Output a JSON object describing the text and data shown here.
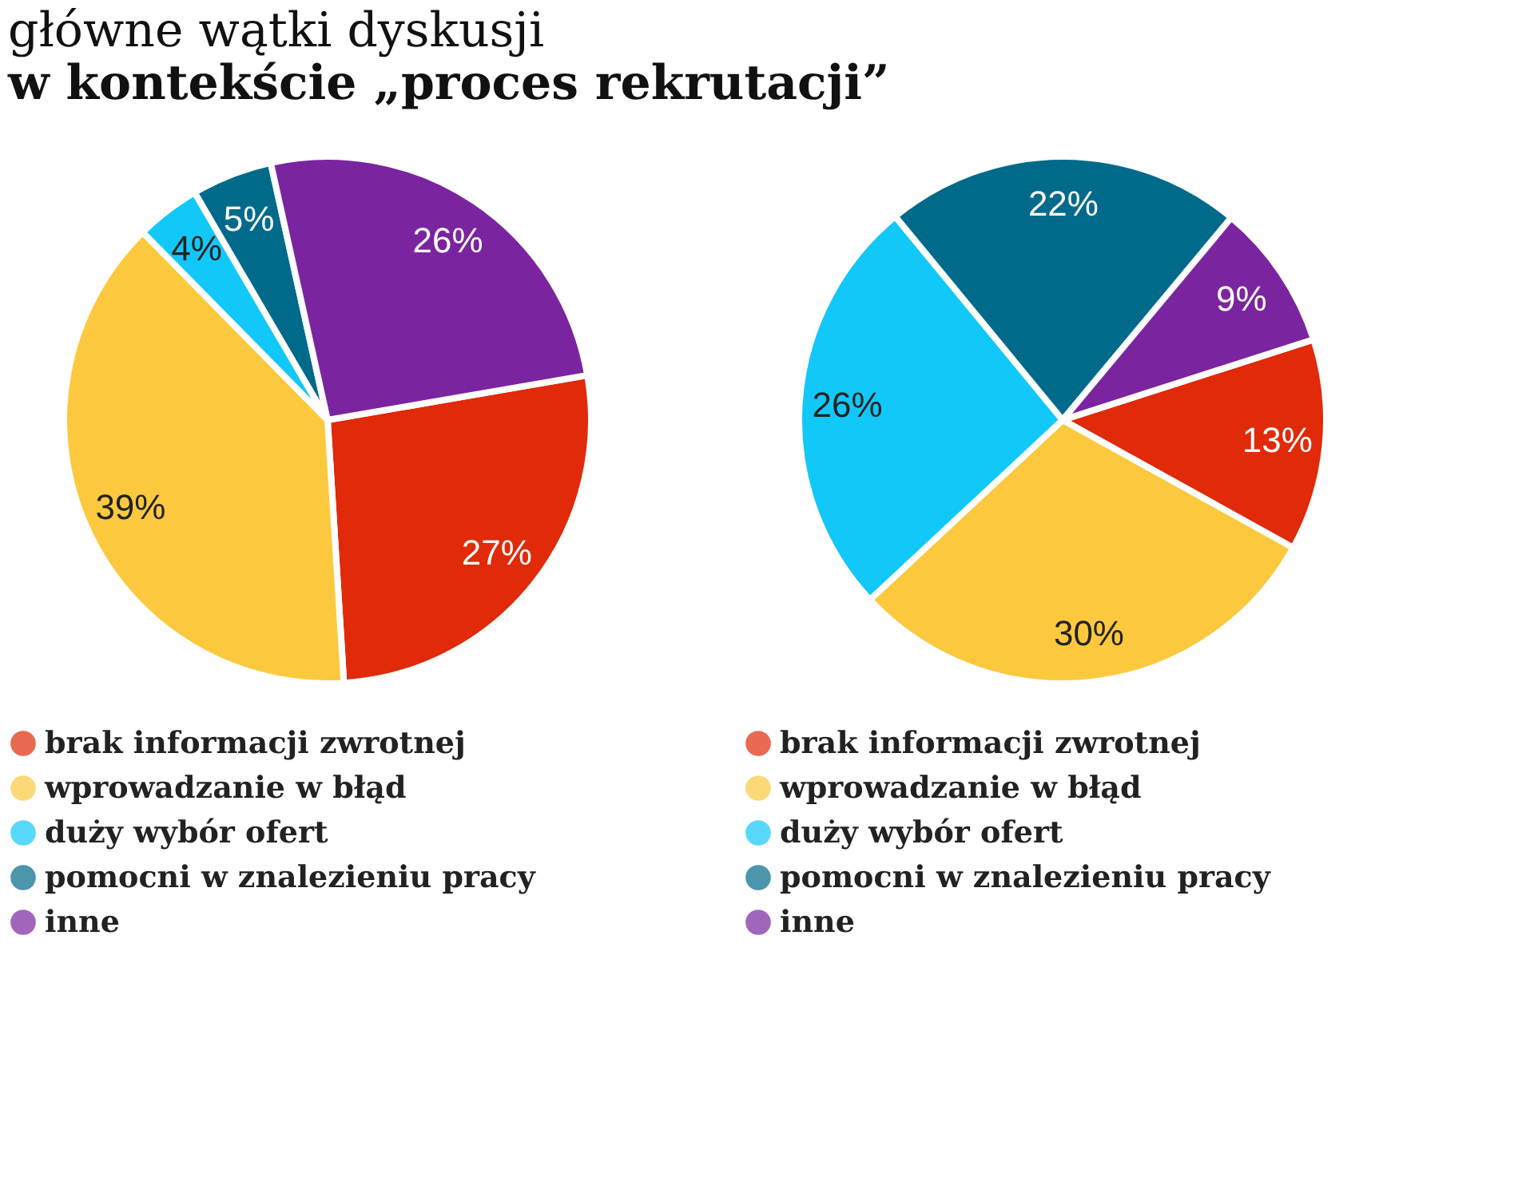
{
  "chart_data": [
    {
      "type": "pie",
      "title": "główne wątki dyskusji",
      "subtitle": "w kontekście „proces rekrutacji”",
      "categories": [
        "brak informacji zwrotnej",
        "wprowadzanie w błąd",
        "duży wybór ofert",
        "pomocni w znalezieniu pracy",
        "inne"
      ],
      "values": [
        27,
        39,
        4,
        5,
        26
      ],
      "value_labels": [
        "27%",
        "39%",
        "4%",
        "5%",
        "26%"
      ],
      "colors": [
        "#e02a0a",
        "#fcc93e",
        "#12c8f8",
        "#006a8a",
        "#7b24a0"
      ],
      "legend": "bottom"
    },
    {
      "type": "pie",
      "categories": [
        "brak informacji zwrotnej",
        "wprowadzanie w błąd",
        "duży wybór ofert",
        "pomocni w znalezieniu pracy",
        "inne"
      ],
      "values": [
        13,
        30,
        26,
        22,
        9
      ],
      "value_labels": [
        "13%",
        "30%",
        "26%",
        "22%",
        "9%"
      ],
      "colors": [
        "#e02a0a",
        "#fcc93e",
        "#12c8f8",
        "#006a8a",
        "#7b24a0"
      ],
      "legend": "bottom"
    }
  ]
}
